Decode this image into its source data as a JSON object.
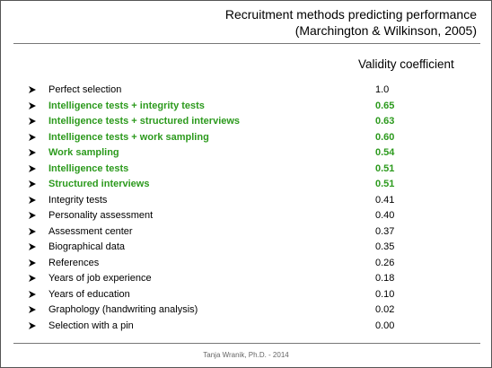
{
  "title": {
    "line1": "Recruitment methods predicting performance",
    "line2": "(Marchington & Wilkinson, 2005)"
  },
  "column_header": "Validity coefficient",
  "highlight_color": "#2c9a1d",
  "bullet_icon": "arrowhead-bullet-icon",
  "rows": [
    {
      "method": "Perfect selection",
      "value": "1.0",
      "highlighted": false
    },
    {
      "method": "Intelligence  tests + integrity tests",
      "value": "0.65",
      "highlighted": true
    },
    {
      "method": "Intelligence tests + structured interviews",
      "value": "0.63",
      "highlighted": true
    },
    {
      "method": "Intelligence tests + work sampling",
      "value": "0.60",
      "highlighted": true
    },
    {
      "method": "Work sampling",
      "value": "0.54",
      "highlighted": true
    },
    {
      "method": "Intelligence tests",
      "value": "0.51",
      "highlighted": true
    },
    {
      "method": "Structured interviews",
      "value": "0.51",
      "highlighted": true
    },
    {
      "method": "Integrity tests",
      "value": "0.41",
      "highlighted": false
    },
    {
      "method": "Personality assessment",
      "value": "0.40",
      "highlighted": false
    },
    {
      "method": "Assessment center",
      "value": "0.37",
      "highlighted": false
    },
    {
      "method": "Biographical data",
      "value": "0.35",
      "highlighted": false
    },
    {
      "method": "References",
      "value": "0.26",
      "highlighted": false
    },
    {
      "method": "Years of job experience",
      "value": "0.18",
      "highlighted": false
    },
    {
      "method": "Years of education",
      "value": "0.10",
      "highlighted": false
    },
    {
      "method": "Graphology (handwriting analysis)",
      "value": "0.02",
      "highlighted": false
    },
    {
      "method": "Selection with a pin",
      "value": "0.00",
      "highlighted": false
    }
  ],
  "footer": "Tanja Wranik, Ph.D. - 2014"
}
